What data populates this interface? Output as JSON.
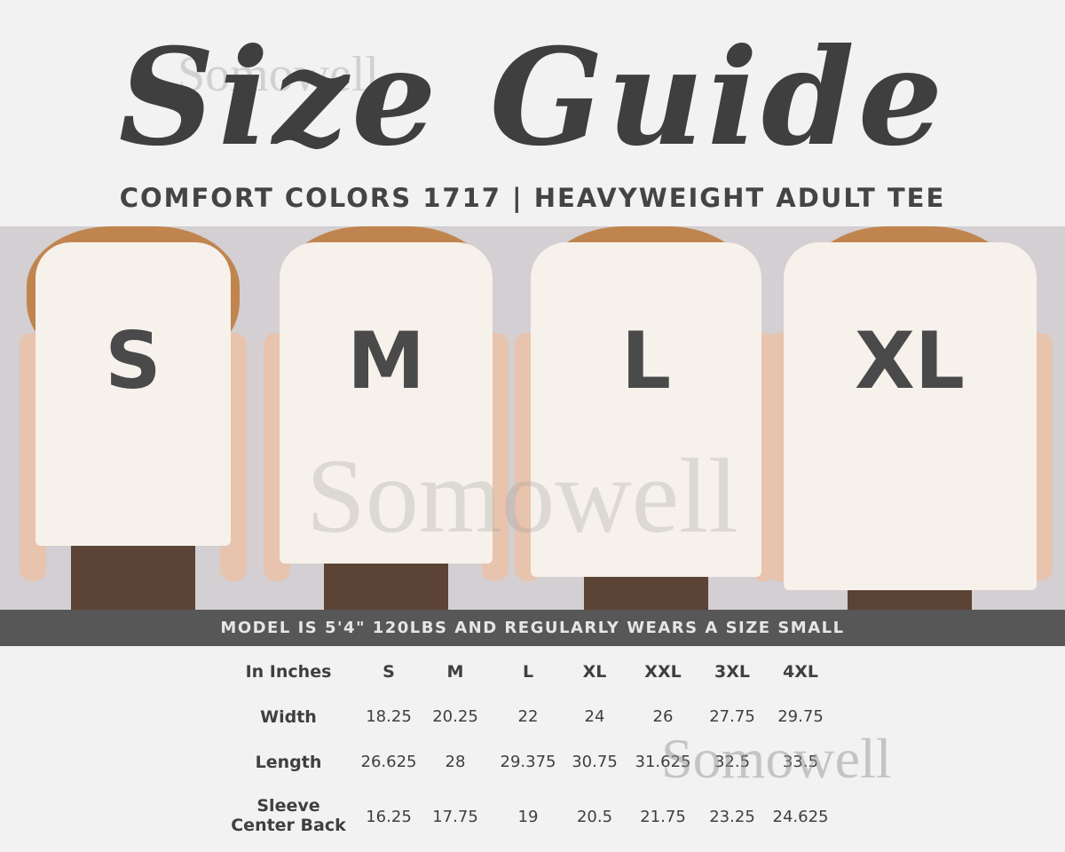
{
  "title": "Size Guide",
  "watermark": "Somowell",
  "subtitle": "COMFORT COLORS 1717 | HEAVYWEIGHT ADULT TEE",
  "models": [
    {
      "size": "S"
    },
    {
      "size": "M"
    },
    {
      "size": "L"
    },
    {
      "size": "XL"
    }
  ],
  "model_note": "MODEL IS 5'4\" 120LBS AND REGULARLY WEARS A SIZE SMALL",
  "table": {
    "header_label": "In Inches",
    "columns": [
      "S",
      "M",
      "L",
      "XL",
      "XXL",
      "3XL",
      "4XL"
    ],
    "rows": [
      {
        "label": "Width",
        "values": [
          "18.25",
          "20.25",
          "22",
          "24",
          "26",
          "27.75",
          "29.75"
        ]
      },
      {
        "label": "Length",
        "values": [
          "26.625",
          "28",
          "29.375",
          "30.75",
          "31.625",
          "32.5",
          "33.5"
        ]
      },
      {
        "label_line1": "Sleeve",
        "label_line2": "Center Back",
        "values": [
          "16.25",
          "17.75",
          "19",
          "20.5",
          "21.75",
          "23.25",
          "24.625"
        ]
      }
    ]
  },
  "colors": {
    "text": "#3f3f3f",
    "band": "#575757",
    "photo_bg": "#d3cfd2",
    "hair": "#c0854f",
    "tee": "#f6f1ea"
  }
}
